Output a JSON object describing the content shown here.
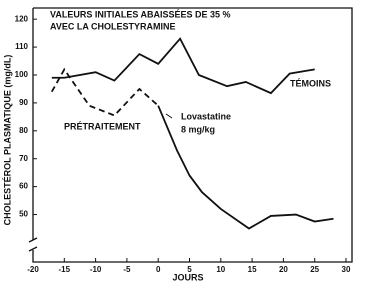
{
  "chart_data": {
    "type": "line",
    "title": [
      "VALEURS INITIALES ABAISSÉES DE 35 %",
      "AVEC LA CHOLESTYRAMINE"
    ],
    "y_label": "CHOLESTÉROL PLASMATIQUE (mg/dL)",
    "x_label": "JOURS",
    "xlim": [
      -20,
      30
    ],
    "xticks": [
      -20,
      -15,
      -10,
      -5,
      0,
      5,
      10,
      15,
      20,
      25,
      30
    ],
    "ylim": [
      33,
      124
    ],
    "yticks": [
      50,
      60,
      70,
      80,
      90,
      100,
      110,
      120
    ],
    "series": [
      {
        "name": "TÉMOINS",
        "color": "#111111",
        "style": "solid",
        "x": [
          -17,
          -15,
          -10,
          -7,
          -3,
          0,
          3.5,
          6.5,
          11,
          14,
          18,
          21,
          25
        ],
        "values": [
          99,
          99,
          101,
          98,
          107.5,
          104,
          113,
          100,
          96,
          97.5,
          93.5,
          100.5,
          102
        ]
      },
      {
        "name": "PRÉTRAITEMENT",
        "color": "#111111",
        "style": "dashed",
        "x": [
          -17,
          -15,
          -11,
          -7,
          -3,
          0
        ],
        "values": [
          94,
          102,
          89,
          85.5,
          95,
          89
        ]
      },
      {
        "color": "#111111",
        "style": "solid",
        "x": [
          0,
          3,
          5,
          7,
          10,
          14.5,
          18,
          22,
          25,
          28
        ],
        "values": [
          89,
          73,
          64,
          58,
          52,
          45,
          49.5,
          50,
          47.5,
          48.5
        ]
      }
    ],
    "annotations": [
      "Lovastatine",
      "8 mg/kg"
    ]
  }
}
